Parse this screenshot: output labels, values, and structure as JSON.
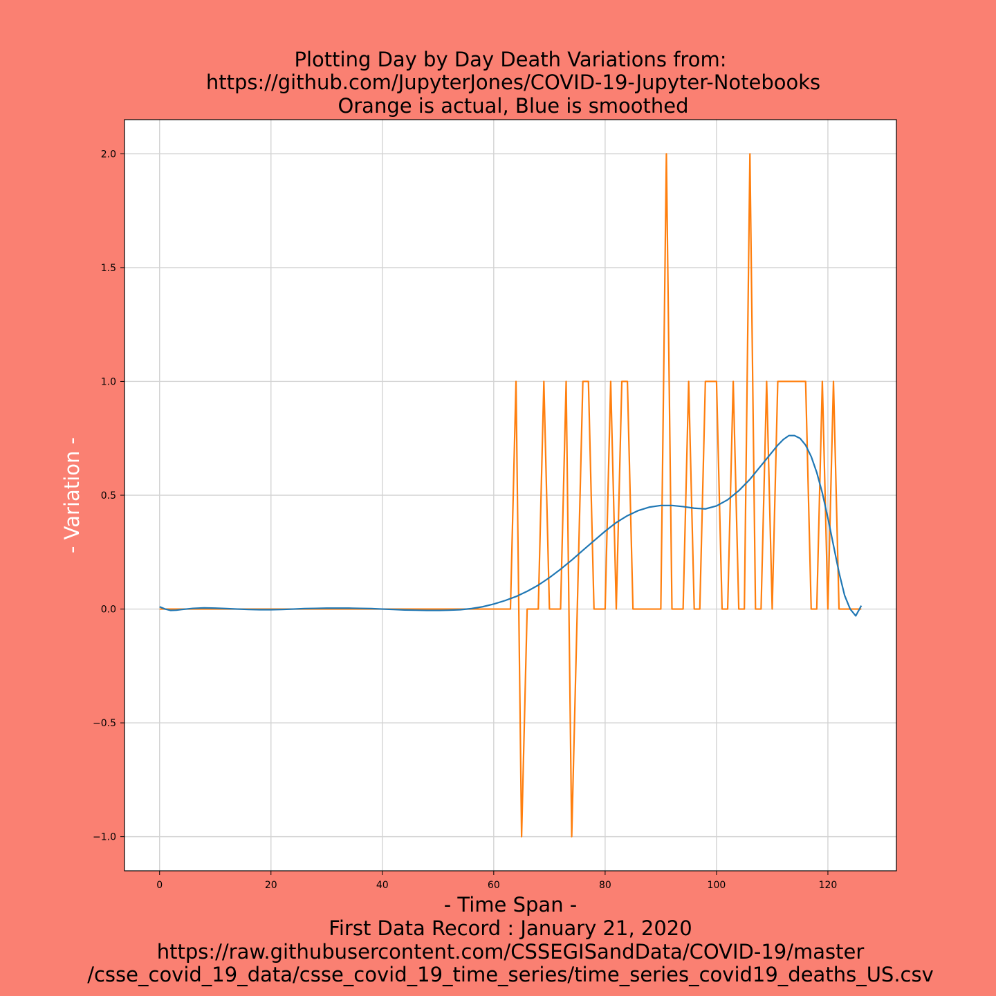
{
  "chart_data": {
    "type": "line",
    "title_lines": [
      "Plotting Day by Day Death Variations from:",
      "https://github.com/JupyterJones/COVID-19-Jupyter-Notebooks",
      "Orange is actual, Blue is smoothed"
    ],
    "xlabel_lines": [
      "- Time Span -",
      "First Data Record : January 21, 2020",
      "https://raw.githubusercontent.com/CSSEGISandData/COVID-19/master",
      "/csse_covid_19_data/csse_covid_19_time_series/time_series_covid19_deaths_US.csv"
    ],
    "ylabel": "- Variation -",
    "xlim": [
      -6.3,
      132.3
    ],
    "ylim": [
      -1.15,
      2.15
    ],
    "x_ticks": [
      0,
      20,
      40,
      60,
      80,
      100,
      120
    ],
    "x_tick_labels": [
      "0",
      "20",
      "40",
      "60",
      "80",
      "100",
      "120"
    ],
    "y_ticks": [
      -1.0,
      -0.5,
      0.0,
      0.5,
      1.0,
      1.5,
      2.0
    ],
    "y_tick_labels": [
      "−1.0",
      "−0.5",
      "0.0",
      "0.5",
      "1.0",
      "1.5",
      "2.0"
    ],
    "grid": true,
    "series": [
      {
        "color": "#ff7f0e",
        "x": [
          0,
          1,
          2,
          3,
          4,
          5,
          6,
          7,
          8,
          9,
          10,
          11,
          12,
          13,
          14,
          15,
          16,
          17,
          18,
          19,
          20,
          21,
          22,
          23,
          24,
          25,
          26,
          27,
          28,
          29,
          30,
          31,
          32,
          33,
          34,
          35,
          36,
          37,
          38,
          39,
          40,
          41,
          42,
          43,
          44,
          45,
          46,
          47,
          48,
          49,
          50,
          51,
          52,
          53,
          54,
          55,
          56,
          57,
          58,
          59,
          60,
          61,
          62,
          63,
          64,
          65,
          66,
          67,
          68,
          69,
          70,
          71,
          72,
          73,
          74,
          75,
          76,
          77,
          78,
          79,
          80,
          81,
          82,
          83,
          84,
          85,
          86,
          87,
          88,
          89,
          90,
          91,
          92,
          93,
          94,
          95,
          96,
          97,
          98,
          99,
          100,
          101,
          102,
          103,
          104,
          105,
          106,
          107,
          108,
          109,
          110,
          111,
          112,
          113,
          114,
          115,
          116,
          117,
          118,
          119,
          120,
          121,
          122,
          123,
          124,
          125,
          126
        ],
        "values": [
          0,
          0,
          0,
          0,
          0,
          0,
          0,
          0,
          0,
          0,
          0,
          0,
          0,
          0,
          0,
          0,
          0,
          0,
          0,
          0,
          0,
          0,
          0,
          0,
          0,
          0,
          0,
          0,
          0,
          0,
          0,
          0,
          0,
          0,
          0,
          0,
          0,
          0,
          0,
          0,
          0,
          0,
          0,
          0,
          0,
          0,
          0,
          0,
          0,
          0,
          0,
          0,
          0,
          0,
          0,
          0,
          0,
          0,
          0,
          0,
          0,
          0,
          0,
          0,
          1,
          -1,
          0,
          0,
          0,
          1,
          0,
          0,
          0,
          1,
          -1,
          0,
          1,
          1,
          0,
          0,
          0,
          1,
          0,
          1,
          1,
          0,
          0,
          0,
          0,
          0,
          0,
          2,
          0,
          0,
          0,
          1,
          0,
          0,
          1,
          1,
          1,
          0,
          0,
          1,
          0,
          0,
          2,
          0,
          0,
          1,
          0,
          1,
          1,
          1,
          1,
          1,
          1,
          0,
          0,
          1,
          0,
          1,
          0,
          0,
          0,
          0,
          0
        ]
      },
      {
        "color": "#1f77b4",
        "x": [
          0,
          1,
          2,
          3,
          4,
          6,
          8,
          10,
          12,
          14,
          16,
          18,
          20,
          22,
          24,
          26,
          28,
          30,
          32,
          34,
          36,
          38,
          40,
          42,
          44,
          46,
          48,
          50,
          52,
          54,
          56,
          58,
          60,
          62,
          64,
          66,
          68,
          70,
          72,
          74,
          76,
          78,
          80,
          82,
          84,
          86,
          88,
          90,
          92,
          94,
          96,
          98,
          100,
          102,
          104,
          106,
          108,
          110,
          111,
          112,
          113,
          114,
          115,
          116,
          117,
          118,
          119,
          120,
          121,
          122,
          123,
          124,
          125,
          126
        ],
        "values": [
          0.01,
          0.0,
          -0.006,
          -0.005,
          -0.002,
          0.003,
          0.005,
          0.004,
          0.002,
          0.0,
          -0.002,
          -0.003,
          -0.003,
          -0.002,
          0.0,
          0.002,
          0.003,
          0.004,
          0.004,
          0.004,
          0.003,
          0.002,
          0.0,
          -0.002,
          -0.004,
          -0.005,
          -0.006,
          -0.006,
          -0.005,
          -0.003,
          0.002,
          0.01,
          0.022,
          0.037,
          0.055,
          0.078,
          0.105,
          0.138,
          0.175,
          0.215,
          0.258,
          0.3,
          0.342,
          0.38,
          0.41,
          0.433,
          0.448,
          0.455,
          0.455,
          0.45,
          0.443,
          0.44,
          0.453,
          0.48,
          0.52,
          0.57,
          0.63,
          0.69,
          0.72,
          0.745,
          0.762,
          0.762,
          0.75,
          0.72,
          0.67,
          0.6,
          0.51,
          0.4,
          0.28,
          0.16,
          0.06,
          0.0,
          -0.03,
          0.015
        ]
      }
    ]
  }
}
